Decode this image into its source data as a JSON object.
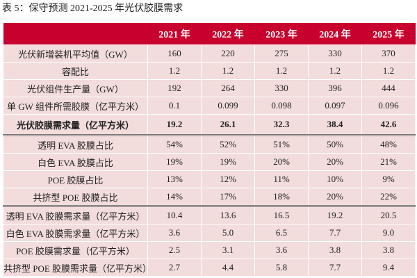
{
  "title": "表 5：保守预测 2021-2025 年光伏胶膜需求",
  "table": {
    "headers": [
      "",
      "2021 年",
      "2022 年",
      "2023 年",
      "2024 年",
      "2025 年"
    ],
    "rows": [
      {
        "label": "光伏新增装机平均值（GW）",
        "values": [
          "160",
          "220",
          "275",
          "330",
          "370"
        ]
      },
      {
        "label": "容配比",
        "values": [
          "1.2",
          "1.2",
          "1.2",
          "1.2",
          "1.2"
        ]
      },
      {
        "label": "光伏组件生产量（GW）",
        "values": [
          "192",
          "264",
          "330",
          "396",
          "444"
        ]
      },
      {
        "label": "单 GW 组件所需胶膜（亿平方米）",
        "values": [
          "0.1",
          "0.099",
          "0.098",
          "0.097",
          "0.096"
        ]
      },
      {
        "label": "光伏胶膜需求量（亿平方米）",
        "values": [
          "19.2",
          "26.1",
          "32.3",
          "38.4",
          "42.6"
        ]
      },
      {
        "label": "透明 EVA 胶膜占比",
        "values": [
          "54%",
          "52%",
          "51%",
          "50%",
          "48%"
        ]
      },
      {
        "label": "白色 EVA 胶膜占比",
        "values": [
          "19%",
          "19%",
          "20%",
          "20%",
          "21%"
        ]
      },
      {
        "label": "POE 胶膜占比",
        "values": [
          "13%",
          "12%",
          "11%",
          "10%",
          "9%"
        ]
      },
      {
        "label": "共挤型 POE 胶膜占比",
        "values": [
          "14%",
          "17%",
          "18%",
          "20%",
          "22%"
        ]
      },
      {
        "label": "透明 EVA 胶膜需求量（亿平方米）",
        "values": [
          "10.4",
          "13.6",
          "16.5",
          "19.2",
          "20.5"
        ]
      },
      {
        "label": "白色 EVA 胶膜需求量（亿平方米）",
        "values": [
          "3.6",
          "5.0",
          "6.5",
          "7.7",
          "9.0"
        ]
      },
      {
        "label": "POE 胶膜需求量（亿平方米）",
        "values": [
          "2.5",
          "3.1",
          "3.6",
          "3.8",
          "3.8"
        ]
      },
      {
        "label": "共挤型 POE 胶膜需求量（亿平方米）",
        "values": [
          "2.7",
          "4.4",
          "5.8",
          "7.7",
          "9.4"
        ]
      }
    ]
  },
  "colors": {
    "header": "#C8002E",
    "cell": "#F2DCDC"
  }
}
